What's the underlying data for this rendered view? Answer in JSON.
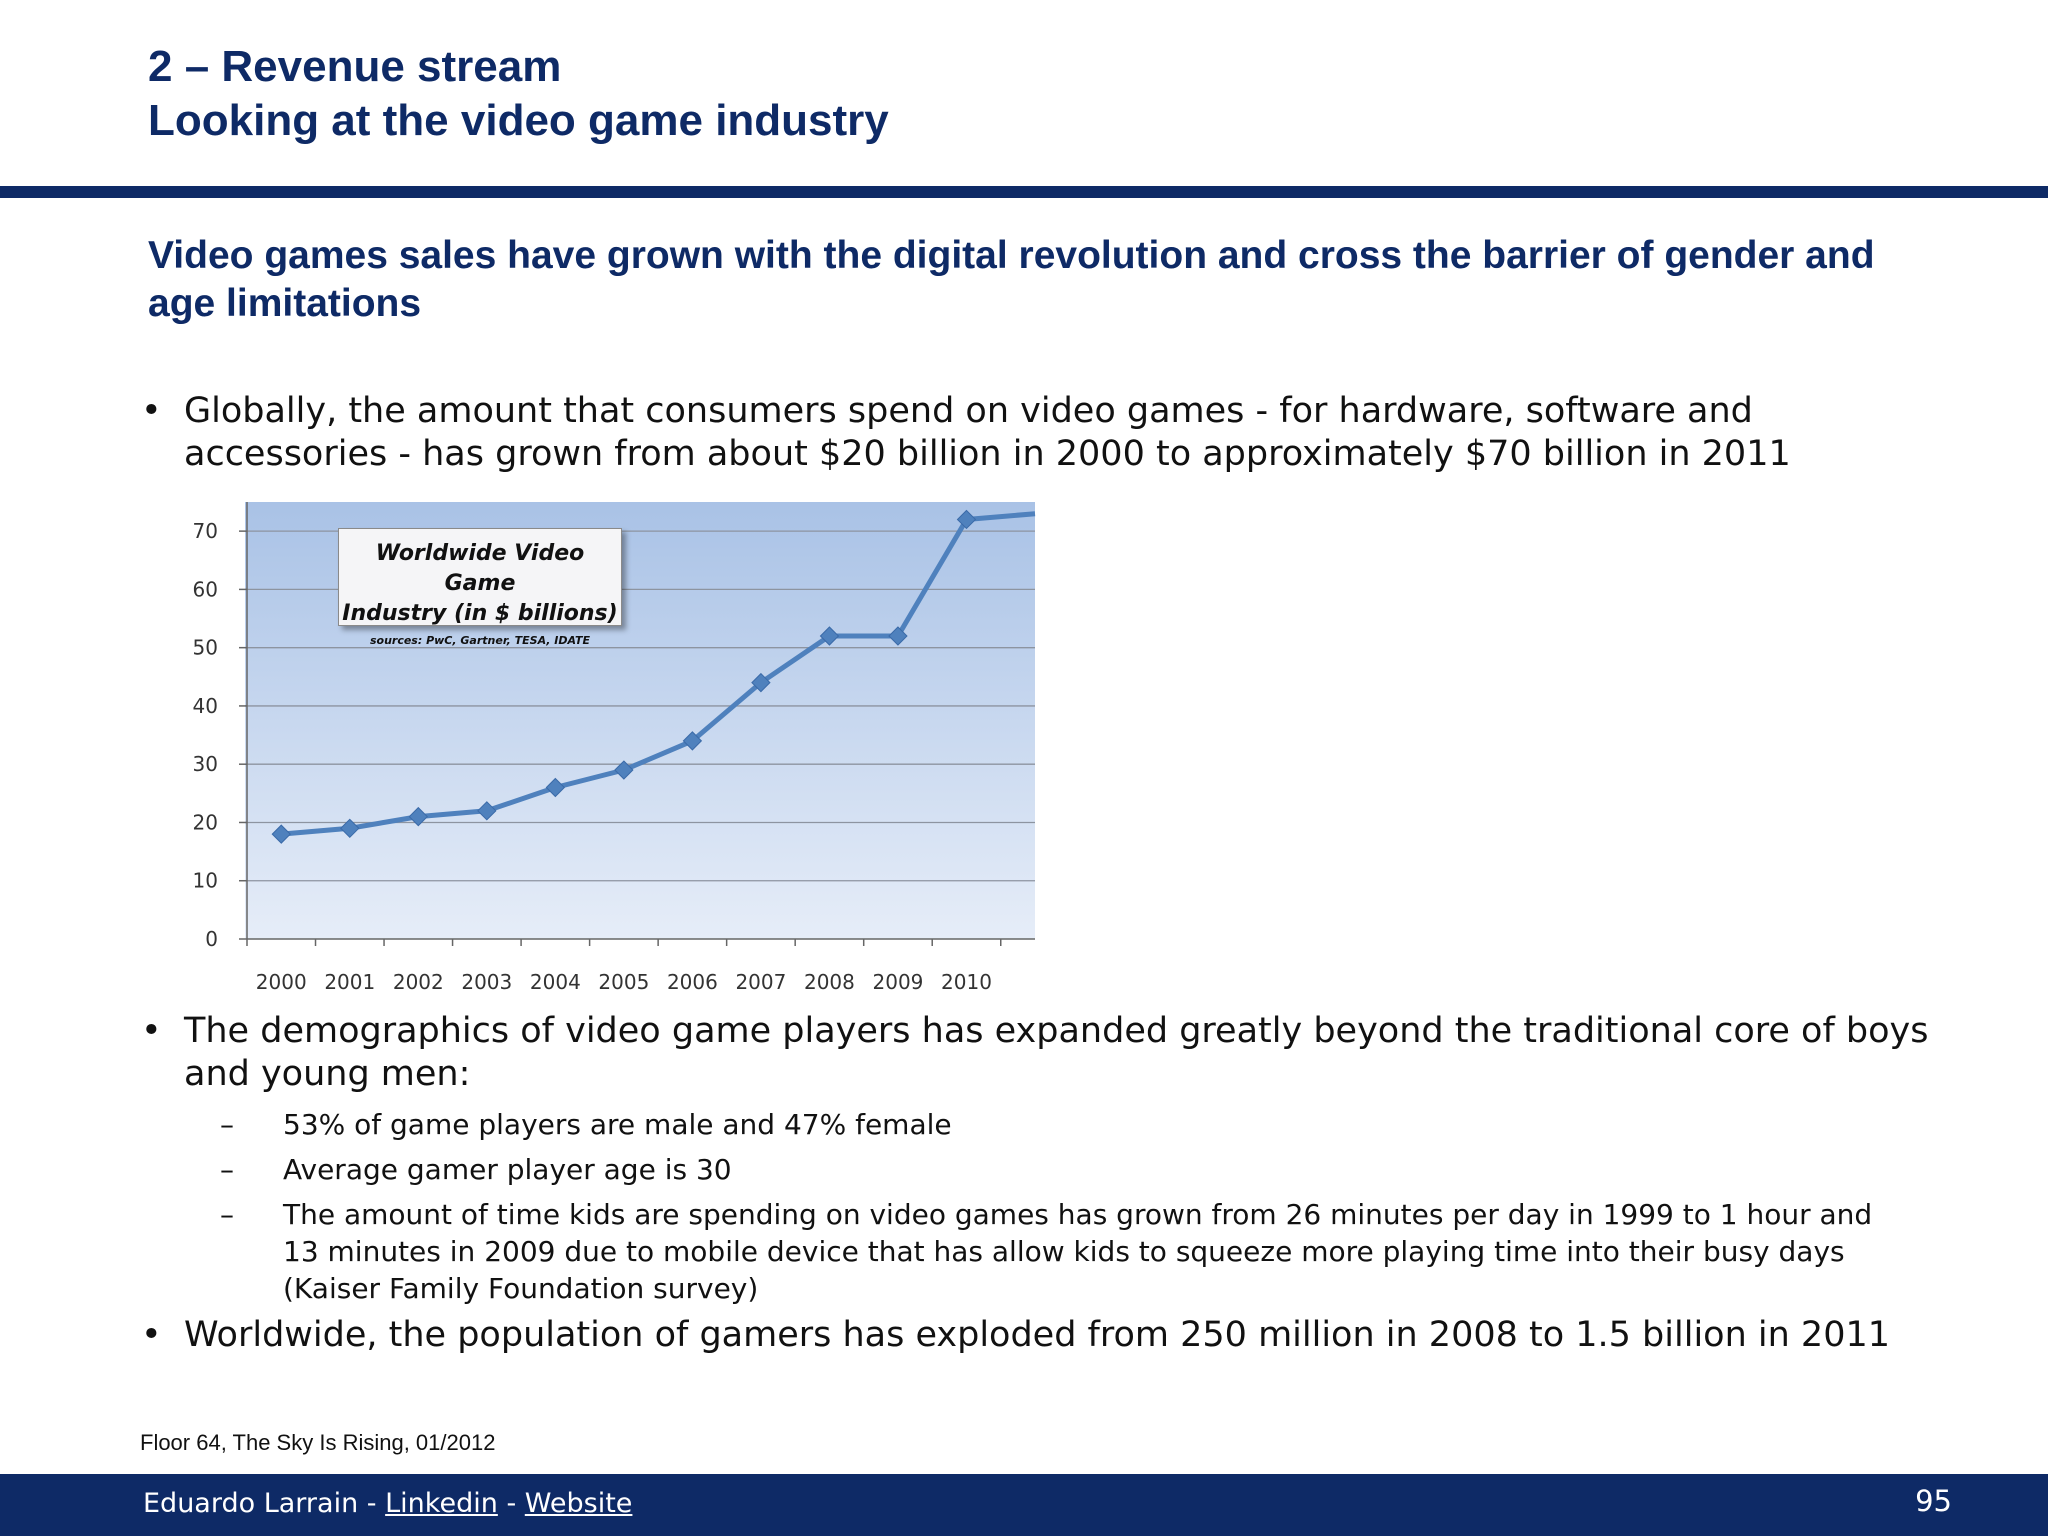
{
  "header": {
    "line1": "2 – Revenue stream",
    "line2": "Looking at the video game industry"
  },
  "headline": "Video games sales have grown with the digital revolution and cross the barrier of gender and age limitations",
  "bullets": [
    "Globally, the amount that consumers spend on video games - for hardware, software and accessories - has grown from about $20 billion in 2000 to approximately $70 billion in 2011",
    "The demographics of video game players has expanded greatly beyond the traditional core of boys and young men:",
    "Worldwide, the population of gamers has exploded from 250 million in 2008 to 1.5 billion in 2011"
  ],
  "bullet_symbol": "•",
  "dash_symbol": "–",
  "sub_bullets": [
    "53% of game players are male and 47% female",
    "Average gamer player age is 30",
    "The amount of time kids are spending on video games has grown from 26 minutes per day in 1999 to 1 hour and 13 minutes in 2009 due to mobile device that has allow kids to squeeze more playing time into their busy days (Kaiser Family Foundation survey)"
  ],
  "chart_data": {
    "type": "line",
    "title": "Worldwide Video Game Industry (in $ billions)",
    "title_line1": "Worldwide Video Game",
    "title_line2": "Industry (in $ billions)",
    "sources": "sources: PwC, Gartner, TESA, IDATE",
    "categories": [
      "2000",
      "2001",
      "2002",
      "2003",
      "2004",
      "2005",
      "2006",
      "2007",
      "2008",
      "2009",
      "2010"
    ],
    "values": [
      18,
      19,
      21,
      22,
      26,
      29,
      34,
      44,
      52,
      52,
      72
    ],
    "trailing_value": 73,
    "ylim": [
      0,
      75
    ],
    "yticks": [
      0,
      10,
      20,
      30,
      40,
      50,
      60,
      70
    ],
    "grid": true,
    "line_color": "#4f81bd",
    "background_top": "#a9c2e6",
    "background_bottom": "#e6edf8"
  },
  "source_note": "Floor 64, The Sky Is Rising, 01/2012",
  "footer": {
    "author": "Eduardo Larrain",
    "sep": "-",
    "linkedin": "Linkedin",
    "website": "Website",
    "page_number": "95"
  },
  "colors": {
    "brand_navy": "#0e2a66"
  }
}
